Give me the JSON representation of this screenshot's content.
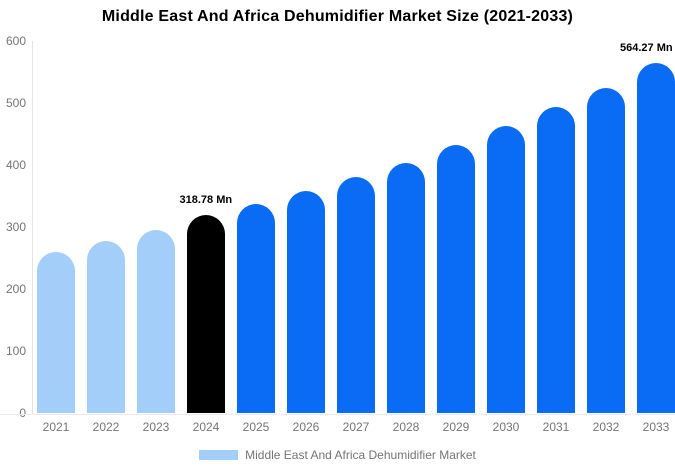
{
  "title": "Middle East And Africa Dehumidifier Market Size (2021-2033)",
  "colors": {
    "bar_light_blue": "#a3cefa",
    "bar_blue": "#0a6cf5",
    "bar_black": "#000000",
    "axis_text": "#757575",
    "axis_line": "#e3e3e3",
    "baseline": "#ebebeb",
    "annotation_text": "#000000",
    "title_text": "#000000"
  },
  "legend": {
    "swatch_color": "#a3cefa",
    "label": "Middle East And Africa Dehumidifier Market"
  },
  "chart_data": {
    "type": "bar",
    "title": "Middle East And Africa Dehumidifier Market Size (2021-2033)",
    "categories": [
      "2021",
      "2022",
      "2023",
      "2024",
      "2025",
      "2026",
      "2027",
      "2028",
      "2029",
      "2030",
      "2031",
      "2032",
      "2033"
    ],
    "values": [
      259,
      278,
      295,
      318.78,
      337,
      358,
      380,
      403,
      433,
      463,
      494,
      525,
      564.27
    ],
    "bar_colors": [
      "#a3cefa",
      "#a3cefa",
      "#a3cefa",
      "#000000",
      "#0a6cf5",
      "#0a6cf5",
      "#0a6cf5",
      "#0a6cf5",
      "#0a6cf5",
      "#0a6cf5",
      "#0a6cf5",
      "#0a6cf5",
      "#0a6cf5"
    ],
    "annotations": [
      {
        "category": "2024",
        "text": "318.78 Mn"
      },
      {
        "category": "2033",
        "text": "564.27 Mn"
      }
    ],
    "unit": "Mn",
    "xlabel": "",
    "ylabel": "",
    "ylim": [
      0,
      600
    ],
    "y_ticks": [
      600,
      500,
      400,
      300,
      200,
      100,
      0
    ],
    "grid": false,
    "legend_position": "bottom"
  }
}
